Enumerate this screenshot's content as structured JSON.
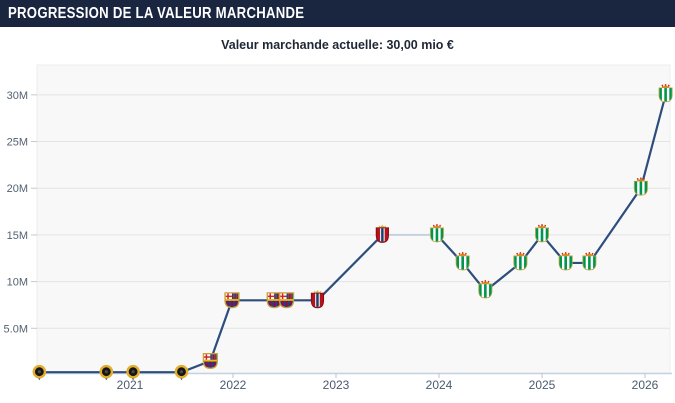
{
  "header": {
    "title": "PROGRESSION DE LA VALEUR MARCHANDE"
  },
  "subtitle": "Valeur marchande actuelle: 30,00 mio €",
  "chart_data": {
    "type": "line",
    "title": "Valeur marchande actuelle: 30,00 mio €",
    "current_value_label": "30,00 mio €",
    "unit": "mio €",
    "grid": true,
    "legend_position": "none",
    "xlim": [
      2020.0,
      2026.3
    ],
    "ylim": [
      0,
      33
    ],
    "y_ticks": [
      {
        "value": 5,
        "label": "5.0M"
      },
      {
        "value": 10,
        "label": "10M"
      },
      {
        "value": 15,
        "label": "15M"
      },
      {
        "value": 20,
        "label": "20M"
      },
      {
        "value": 25,
        "label": "25M"
      },
      {
        "value": 30,
        "label": "30M"
      }
    ],
    "x_ticks": [
      {
        "year": 2021,
        "label": "2021"
      },
      {
        "year": 2022,
        "label": "2022"
      },
      {
        "year": 2023,
        "label": "2023"
      },
      {
        "year": 2024,
        "label": "2024"
      },
      {
        "year": 2025,
        "label": "2025"
      },
      {
        "year": 2026,
        "label": "2026"
      }
    ],
    "points": [
      {
        "x": 2020.12,
        "value_mio": 0.3,
        "club": "dark-pin"
      },
      {
        "x": 2020.77,
        "value_mio": 0.3,
        "club": "dark-pin"
      },
      {
        "x": 2021.03,
        "value_mio": 0.3,
        "club": "dark-pin"
      },
      {
        "x": 2021.5,
        "value_mio": 0.3,
        "club": "dark-pin"
      },
      {
        "x": 2021.78,
        "value_mio": 1.5,
        "club": "barcelona"
      },
      {
        "x": 2021.99,
        "value_mio": 8,
        "club": "barcelona"
      },
      {
        "x": 2022.4,
        "value_mio": 8,
        "club": "barcelona"
      },
      {
        "x": 2022.52,
        "value_mio": 8,
        "club": "barcelona"
      },
      {
        "x": 2022.82,
        "value_mio": 8,
        "club": "osasuna"
      },
      {
        "x": 2023.45,
        "value_mio": 15,
        "club": "osasuna"
      },
      {
        "x": 2023.98,
        "value_mio": 15,
        "club": "betis",
        "gap_before": true
      },
      {
        "x": 2024.23,
        "value_mio": 12,
        "club": "betis"
      },
      {
        "x": 2024.45,
        "value_mio": 9,
        "club": "betis"
      },
      {
        "x": 2024.79,
        "value_mio": 12,
        "club": "betis"
      },
      {
        "x": 2025.0,
        "value_mio": 15,
        "club": "betis"
      },
      {
        "x": 2025.23,
        "value_mio": 12,
        "club": "betis"
      },
      {
        "x": 2025.46,
        "value_mio": 12,
        "club": "betis"
      },
      {
        "x": 2025.96,
        "value_mio": 20,
        "club": "betis"
      },
      {
        "x": 2026.2,
        "value_mio": 30,
        "club": "betis"
      }
    ]
  },
  "colors": {
    "header_bg": "#1a2540",
    "header_text": "#ffffff",
    "subtitle_text": "#1f2735",
    "line": "#2d4d7c",
    "line_light": "#c6d1de",
    "grid": "#e3e3e4",
    "plot_bg": "#f8f8f9",
    "plot_border": "#ededee",
    "axis": "#c5d2e0",
    "y_tick_label": "#546173",
    "x_tick_label": "#4a5a70"
  }
}
